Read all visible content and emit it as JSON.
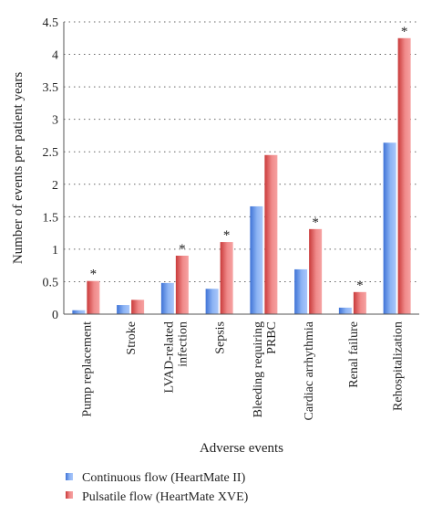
{
  "chart_data": {
    "type": "bar",
    "title": "",
    "xlabel": "Adverse events",
    "ylabel": "Number of events per patient years",
    "ylim": [
      0,
      4.5
    ],
    "yticks": [
      "0",
      "0.5",
      "1",
      "1.5",
      "2",
      "2.5",
      "3",
      "3.5",
      "4",
      "4.5"
    ],
    "grid": true,
    "legend_position": "bottom",
    "categories": [
      "Pump replacement",
      "Stroke",
      "LVAD-related infection",
      "Sepsis",
      "Bleeding requiring PRBC",
      "Cardiac arrhythmia",
      "Renal failure",
      "Rehospitalization"
    ],
    "category_label_lines": [
      [
        "Pump replacement"
      ],
      [
        "Stroke"
      ],
      [
        "LVAD-related",
        "infection"
      ],
      [
        "Sepsis"
      ],
      [
        "Bleeding requiring",
        "PRBC"
      ],
      [
        "Cardiac arrhythmia"
      ],
      [
        "Renal failure"
      ],
      [
        "Rehospitalization"
      ]
    ],
    "series": [
      {
        "name": "Continuous flow (HeartMate II)",
        "color": "#6f9be8",
        "values": [
          0.06,
          0.14,
          0.48,
          0.39,
          1.66,
          0.69,
          0.1,
          2.64
        ]
      },
      {
        "name": "Pulsatile flow (HeartMate XVE)",
        "color": "#e06a6a",
        "values": [
          0.51,
          0.22,
          0.9,
          1.11,
          2.45,
          1.31,
          0.34,
          4.25
        ]
      }
    ],
    "significance_marker": "*",
    "significant": [
      true,
      false,
      true,
      true,
      false,
      true,
      true,
      true
    ]
  }
}
